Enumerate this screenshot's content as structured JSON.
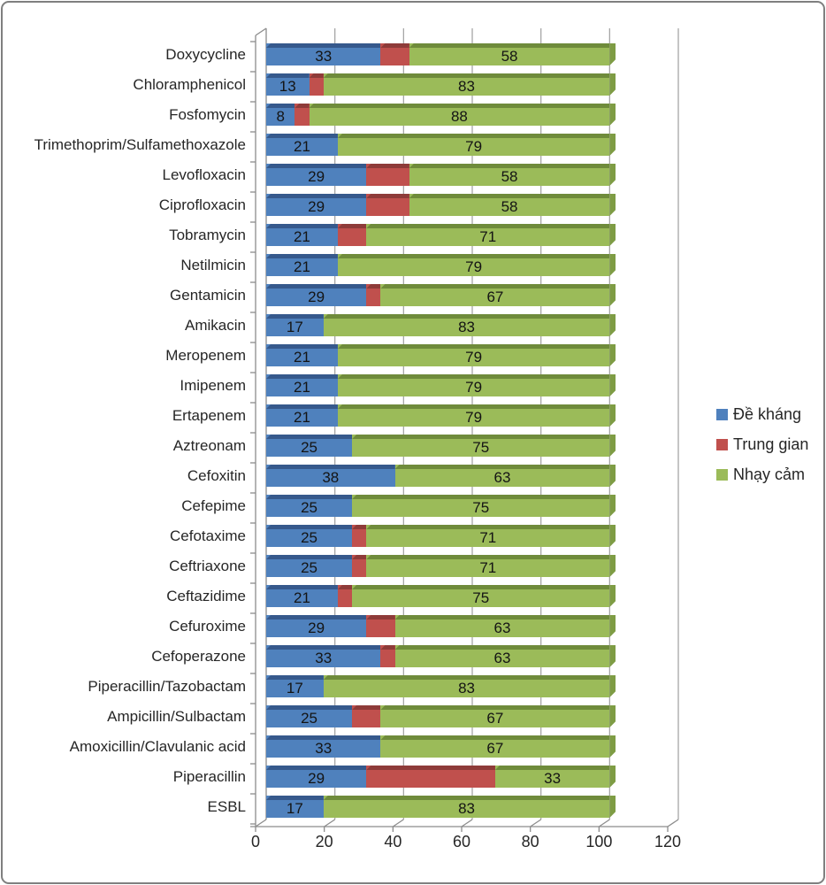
{
  "frame": {
    "border_color": "#7F7F7F",
    "background": "#FFFFFF"
  },
  "colors": {
    "de_khang_face": "#4F81BD",
    "de_khang_dark": "#36598C",
    "trung_gian_face": "#C0504D",
    "trung_gian_dark": "#8E3B39",
    "nhay_cam_face": "#9BBB59",
    "nhay_cam_dark": "#6F8B3B",
    "nhay_cam_cap": "#7E9C44",
    "gridline": "#A6A6A6",
    "axis_line": "#8C8C8C",
    "text": "#262626"
  },
  "chart_data": {
    "type": "bar",
    "orientation": "horizontal",
    "stacked": true,
    "title": "",
    "xlabel": "",
    "ylabel": "",
    "xlim": [
      0,
      120
    ],
    "x_ticks": [
      0,
      20,
      40,
      60,
      80,
      100,
      120
    ],
    "grid": true,
    "legend_position": "right",
    "data_label_note": "labels shown inside blue and green segments only; red segments unlabeled",
    "categories": [
      "Doxycycline",
      "Chloramphenicol",
      "Fosfomycin",
      "Trimethoprim/Sulfamethoxazole",
      "Levofloxacin",
      "Ciprofloxacin",
      "Tobramycin",
      "Netilmicin",
      "Gentamicin",
      "Amikacin",
      "Meropenem",
      "Imipenem",
      "Ertapenem",
      "Aztreonam",
      "Cefoxitin",
      "Cefepime",
      "Cefotaxime",
      "Ceftriaxone",
      "Ceftazidime",
      "Cefuroxime",
      "Cefoperazone",
      "Piperacillin/Tazobactam",
      "Ampicillin/Sulbactam",
      "Amoxicillin/Clavulanic acid",
      "Piperacillin",
      "ESBL"
    ],
    "series": [
      {
        "name": "Đề kháng",
        "color": "#4F81BD",
        "show_labels": true,
        "values": [
          33,
          13,
          8,
          21,
          29,
          29,
          21,
          21,
          29,
          17,
          21,
          21,
          21,
          25,
          38,
          25,
          25,
          25,
          21,
          29,
          33,
          17,
          25,
          33,
          29,
          17
        ],
        "values_pct": [
          33.33,
          12.5,
          8.33,
          20.83,
          29.17,
          29.17,
          20.83,
          20.83,
          29.17,
          16.67,
          20.83,
          20.83,
          20.83,
          25,
          37.5,
          25,
          25,
          25,
          20.83,
          29.17,
          33.33,
          16.67,
          25,
          33.33,
          29.17,
          16.67
        ]
      },
      {
        "name": "Trung gian",
        "color": "#C0504D",
        "show_labels": false,
        "values": [
          8,
          4,
          4,
          0,
          13,
          13,
          8,
          0,
          4,
          0,
          0,
          0,
          0,
          0,
          0,
          0,
          4,
          4,
          4,
          8,
          4,
          0,
          8,
          0,
          38,
          0
        ],
        "values_pct": [
          8.33,
          4.17,
          4.17,
          0,
          12.5,
          12.5,
          8.33,
          0,
          4.17,
          0,
          0,
          0,
          0,
          0,
          0,
          0,
          4.17,
          4.17,
          4.17,
          8.33,
          4.17,
          0,
          8.33,
          0,
          37.5,
          0
        ]
      },
      {
        "name": "Nhạy cảm",
        "color": "#9BBB59",
        "show_labels": true,
        "values": [
          58,
          83,
          88,
          79,
          58,
          58,
          71,
          79,
          67,
          83,
          79,
          79,
          79,
          75,
          63,
          75,
          71,
          71,
          75,
          63,
          63,
          83,
          67,
          67,
          33,
          83
        ],
        "values_pct": [
          58.33,
          83.33,
          87.5,
          79.17,
          58.33,
          58.33,
          70.83,
          79.17,
          66.67,
          83.33,
          79.17,
          79.17,
          79.17,
          75,
          62.5,
          75,
          70.83,
          70.83,
          75,
          62.5,
          62.5,
          83.33,
          66.67,
          66.67,
          33.33,
          83.33
        ]
      }
    ]
  },
  "legend": {
    "items": [
      {
        "label": "Đề kháng",
        "color": "#4F81BD"
      },
      {
        "label": "Trung gian",
        "color": "#C0504D"
      },
      {
        "label": "Nhạy cảm",
        "color": "#9BBB59"
      }
    ]
  }
}
